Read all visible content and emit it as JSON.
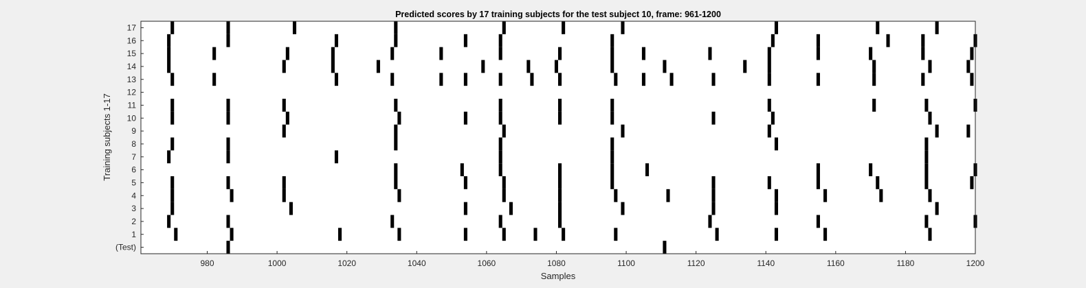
{
  "chart_data": {
    "type": "raster",
    "title": "Predicted scores by 17 training subjects for the test subject 10, frame: 961-1200",
    "xlabel": "Samples",
    "ylabel": "Training subjects 1-17",
    "xlim": [
      961,
      1200
    ],
    "x_ticks": [
      "980",
      "1000",
      "1020",
      "1040",
      "1060",
      "1080",
      "1100",
      "1120",
      "1140",
      "1160",
      "1180",
      "1200"
    ],
    "y_tick_labels": [
      "(Test)",
      "1",
      "2",
      "3",
      "4",
      "5",
      "6",
      "7",
      "8",
      "9",
      "10",
      "11",
      "12",
      "13",
      "14",
      "15",
      "16",
      "17"
    ],
    "colors": {
      "plot_background": "#ffffff",
      "event": "#000000",
      "figure_background": "#f0f0f0"
    },
    "rows": [
      {
        "label": "(Test)",
        "events": [
          986,
          1111
        ]
      },
      {
        "label": "1",
        "events": [
          971,
          987,
          1018,
          1035,
          1054,
          1065,
          1074,
          1082,
          1097,
          1126,
          1143,
          1157,
          1187
        ]
      },
      {
        "label": "2",
        "events": [
          969,
          986,
          1033,
          1064,
          1081,
          1124,
          1155,
          1186,
          1200
        ]
      },
      {
        "label": "3",
        "events": [
          970,
          1004,
          1054,
          1067,
          1081,
          1099,
          1125,
          1143,
          1189
        ]
      },
      {
        "label": "4",
        "events": [
          970,
          987,
          1002,
          1035,
          1065,
          1081,
          1097,
          1112,
          1125,
          1143,
          1157,
          1173,
          1187
        ]
      },
      {
        "label": "5",
        "events": [
          970,
          986,
          1002,
          1034,
          1054,
          1065,
          1081,
          1096,
          1125,
          1141,
          1155,
          1172,
          1186,
          1199
        ]
      },
      {
        "label": "6",
        "events": [
          1034,
          1053,
          1064,
          1081,
          1096,
          1106,
          1155,
          1170,
          1186,
          1200
        ]
      },
      {
        "label": "7",
        "events": [
          969,
          986,
          1017,
          1064,
          1096,
          1186
        ]
      },
      {
        "label": "8",
        "events": [
          970,
          986,
          1034,
          1064,
          1096,
          1143,
          1186
        ]
      },
      {
        "label": "9",
        "events": [
          1002,
          1034,
          1065,
          1099,
          1141,
          1189,
          1198
        ]
      },
      {
        "label": "10",
        "events": [
          970,
          986,
          1003,
          1035,
          1054,
          1064,
          1081,
          1096,
          1125,
          1142,
          1187
        ]
      },
      {
        "label": "11",
        "events": [
          970,
          986,
          1002,
          1034,
          1064,
          1081,
          1096,
          1141,
          1171,
          1186,
          1200
        ]
      },
      {
        "label": "12",
        "events": []
      },
      {
        "label": "13",
        "events": [
          970,
          982,
          1017,
          1033,
          1047,
          1054,
          1064,
          1073,
          1081,
          1097,
          1105,
          1113,
          1125,
          1141,
          1155,
          1171,
          1185,
          1199
        ]
      },
      {
        "label": "14",
        "events": [
          969,
          1002,
          1016,
          1029,
          1059,
          1072,
          1080,
          1096,
          1111,
          1134,
          1141,
          1171,
          1187,
          1198
        ]
      },
      {
        "label": "15",
        "events": [
          969,
          982,
          1003,
          1016,
          1033,
          1047,
          1064,
          1081,
          1096,
          1105,
          1124,
          1141,
          1155,
          1170,
          1185,
          1199
        ]
      },
      {
        "label": "16",
        "events": [
          969,
          986,
          1017,
          1034,
          1054,
          1064,
          1096,
          1142,
          1155,
          1175,
          1185,
          1200
        ]
      },
      {
        "label": "17",
        "events": [
          970,
          986,
          1005,
          1034,
          1065,
          1082,
          1099,
          1143,
          1172,
          1189
        ]
      }
    ]
  }
}
